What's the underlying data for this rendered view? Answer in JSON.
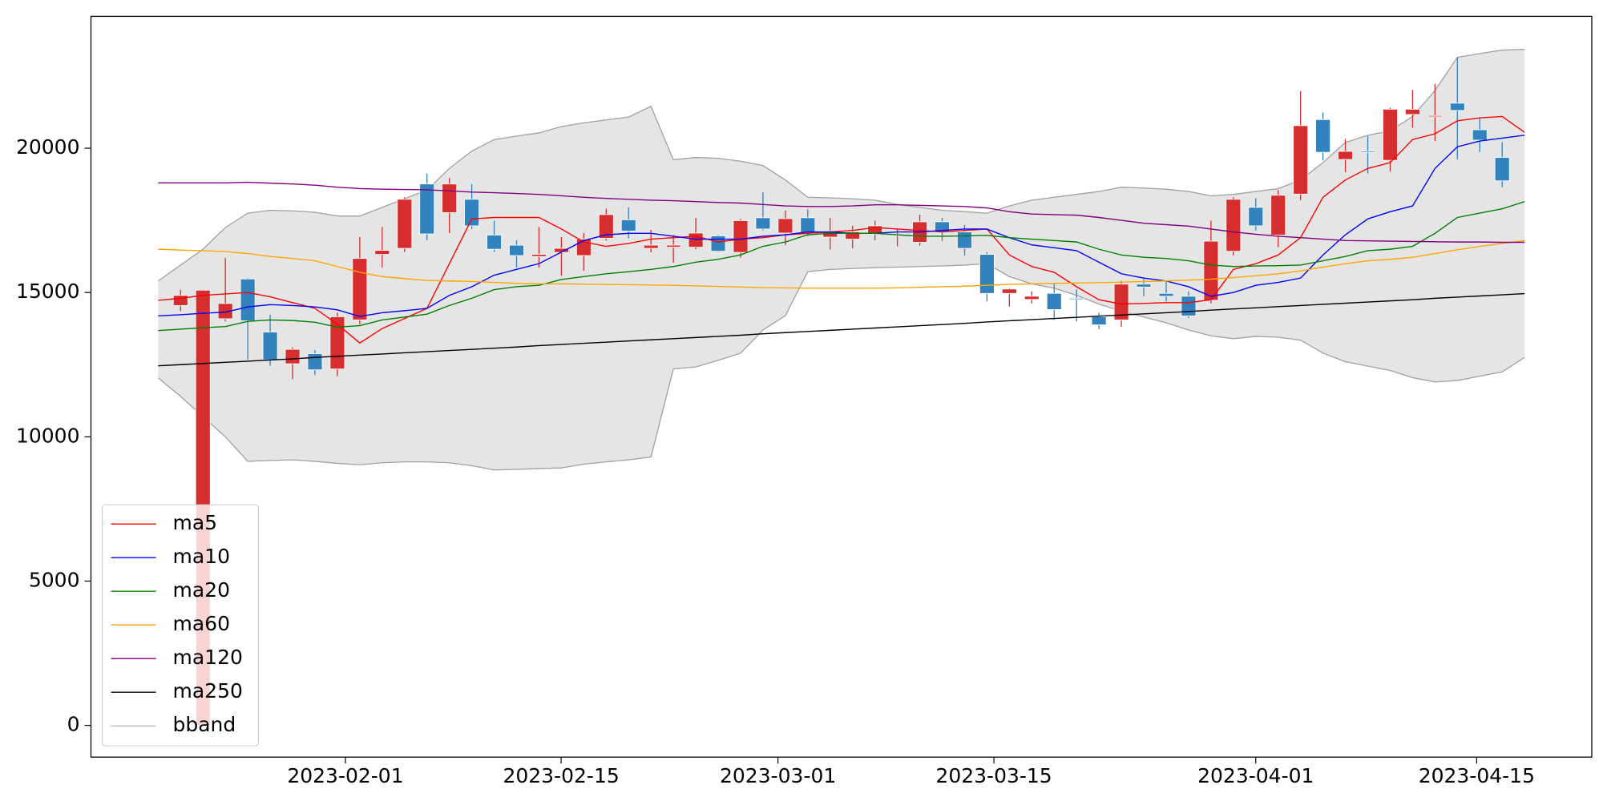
{
  "chart_data": {
    "type": "candlestick",
    "x": [
      0,
      1,
      2,
      3,
      4,
      5,
      6,
      7,
      8,
      9,
      10,
      11,
      12,
      13,
      14,
      15,
      16,
      17,
      18,
      19,
      20,
      21,
      22,
      23,
      24,
      25,
      26,
      27,
      28,
      29,
      30,
      31,
      32,
      33,
      34,
      35,
      36,
      37,
      38,
      39,
      40,
      41,
      42,
      43,
      44,
      45,
      46,
      47,
      48,
      49,
      50,
      51,
      52,
      53,
      54,
      55,
      56,
      57,
      58,
      59,
      60,
      61
    ],
    "xlim": [
      -3,
      64
    ],
    "xticks": [
      {
        "value": 8.36,
        "label": "2023-02-01"
      },
      {
        "value": 17.99,
        "label": "2023-02-15"
      },
      {
        "value": 27.67,
        "label": "2023-03-01"
      },
      {
        "value": 37.31,
        "label": "2023-03-15"
      },
      {
        "value": 49.0,
        "label": "2023-04-01"
      },
      {
        "value": 58.86,
        "label": "2023-04-15"
      }
    ],
    "ylim": [
      -1100,
      24570
    ],
    "yticks": [
      0,
      5000,
      10000,
      15000,
      20000
    ],
    "up_color": "#d62e2e",
    "down_color": "#3182bd",
    "legend": "lower left",
    "candles": {
      "open": [
        null,
        14550,
        0,
        14090,
        15470,
        13630,
        12530,
        12880,
        12350,
        14050,
        16320,
        16530,
        18760,
        17770,
        18230,
        16990,
        16640,
        16250,
        16390,
        16280,
        16880,
        17520,
        16530,
        16570,
        16570,
        16960,
        16390,
        17590,
        17060,
        17590,
        16920,
        16850,
        17030,
        16980,
        16740,
        17450,
        17100,
        16320,
        14970,
        14760,
        14970,
        14800,
        14160,
        14050,
        15290,
        14970,
        14870,
        14730,
        16430,
        17950,
        16990,
        18410,
        20990,
        19610,
        19900,
        19580,
        21170,
        21100,
        21560,
        20640,
        19680,
        null
      ],
      "high": [
        null,
        15100,
        15100,
        16200,
        15500,
        14230,
        13100,
        13000,
        14300,
        16920,
        17270,
        18300,
        19120,
        18970,
        18760,
        17490,
        16810,
        17270,
        16920,
        17060,
        17910,
        17950,
        17170,
        16990,
        17590,
        17000,
        17550,
        18480,
        17840,
        17880,
        17590,
        17310,
        17490,
        17200,
        17700,
        17590,
        17340,
        16400,
        15150,
        15040,
        15330,
        15100,
        14300,
        15400,
        15470,
        15400,
        15040,
        17490,
        18300,
        18270,
        18550,
        21980,
        21240,
        20320,
        20420,
        21400,
        22020,
        22230,
        23150,
        21060,
        20210,
        null
      ],
      "low": [
        null,
        14350,
        0,
        14000,
        12670,
        12460,
        12000,
        12140,
        12100,
        13900,
        15860,
        16400,
        16810,
        17060,
        17200,
        16400,
        15860,
        15860,
        15580,
        15750,
        16800,
        16880,
        16390,
        16040,
        16500,
        16400,
        16210,
        17150,
        16640,
        16950,
        16490,
        16530,
        16810,
        16600,
        16620,
        16780,
        16280,
        14690,
        14510,
        14620,
        14050,
        14000,
        13730,
        13810,
        14870,
        14690,
        14120,
        14620,
        16280,
        17150,
        16570,
        18200,
        19580,
        19170,
        19120,
        19190,
        20710,
        20250,
        19610,
        19860,
        18650,
        null
      ],
      "close": [
        null,
        14900,
        15080,
        14620,
        14020,
        12670,
        13030,
        12320,
        14160,
        16180,
        16460,
        18230,
        17030,
        18760,
        17310,
        16500,
        16280,
        16320,
        16530,
        16850,
        17700,
        17130,
        16640,
        16640,
        17060,
        16430,
        17490,
        17200,
        17560,
        17060,
        17130,
        17100,
        17310,
        17020,
        17450,
        17100,
        16530,
        14970,
        15120,
        14870,
        14410,
        14780,
        13880,
        15290,
        15190,
        14870,
        14190,
        16780,
        18230,
        17310,
        18370,
        20780,
        19860,
        19890,
        19880,
        21350,
        21350,
        21130,
        21310,
        20280,
        18870,
        null
      ]
    },
    "series": [
      {
        "name": "ma5",
        "color": "#ff0000",
        "values": [
          14730,
          14800,
          14900,
          14950,
          15000,
          14850,
          14650,
          14450,
          13900,
          13250,
          13750,
          14100,
          14450,
          16000,
          17550,
          17600,
          17600,
          17600,
          17200,
          16750,
          16600,
          16700,
          16850,
          16900,
          16950,
          16750,
          16850,
          16900,
          17000,
          17050,
          17100,
          17150,
          17250,
          17200,
          17150,
          17100,
          17150,
          17200,
          16300,
          15900,
          15700,
          15200,
          14750,
          14600,
          14620,
          14650,
          14650,
          14750,
          15800,
          16000,
          16300,
          16900,
          18300,
          18900,
          19300,
          19500,
          20300,
          20500,
          20950,
          21050,
          21100,
          20550
        ]
      },
      {
        "name": "ma10",
        "color": "#0000ff",
        "values": [
          14190,
          14230,
          14280,
          14320,
          14500,
          14580,
          14550,
          14500,
          14400,
          14170,
          14300,
          14370,
          14450,
          14900,
          15200,
          15600,
          15800,
          16000,
          16400,
          16800,
          17000,
          17050,
          17050,
          16950,
          16850,
          16850,
          16850,
          16950,
          17000,
          17100,
          17100,
          17050,
          17050,
          17100,
          17100,
          17150,
          17200,
          17200,
          16900,
          16650,
          16550,
          16450,
          16050,
          15650,
          15500,
          15400,
          15200,
          14870,
          15000,
          15250,
          15350,
          15500,
          16300,
          17000,
          17550,
          17800,
          18000,
          19300,
          20050,
          20250,
          20350,
          20450
        ]
      },
      {
        "name": "ma20",
        "color": "#008000",
        "values": [
          13680,
          13730,
          13780,
          13820,
          14000,
          14050,
          14030,
          13970,
          13800,
          13850,
          14050,
          14150,
          14250,
          14550,
          14800,
          15100,
          15200,
          15250,
          15450,
          15550,
          15650,
          15720,
          15800,
          15900,
          16050,
          16150,
          16300,
          16600,
          16750,
          17000,
          17050,
          17050,
          17050,
          17000,
          16950,
          16950,
          16960,
          16980,
          16900,
          16850,
          16800,
          16750,
          16500,
          16300,
          16220,
          16180,
          16100,
          15950,
          15900,
          15920,
          15930,
          15950,
          16100,
          16250,
          16450,
          16500,
          16600,
          17050,
          17600,
          17750,
          17900,
          18150
        ]
      },
      {
        "name": "ma60",
        "color": "#ffa500",
        "values": [
          16500,
          16470,
          16450,
          16420,
          16350,
          16250,
          16180,
          16100,
          15900,
          15700,
          15550,
          15480,
          15420,
          15400,
          15380,
          15350,
          15320,
          15300,
          15300,
          15290,
          15280,
          15270,
          15260,
          15250,
          15230,
          15210,
          15190,
          15170,
          15160,
          15150,
          15150,
          15150,
          15150,
          15160,
          15180,
          15200,
          15220,
          15250,
          15280,
          15300,
          15320,
          15330,
          15340,
          15360,
          15380,
          15400,
          15430,
          15460,
          15520,
          15580,
          15650,
          15750,
          15880,
          16000,
          16100,
          16150,
          16220,
          16350,
          16480,
          16600,
          16700,
          16800
        ]
      },
      {
        "name": "ma120",
        "color": "#800080",
        "values": [
          18800,
          18800,
          18800,
          18800,
          18820,
          18790,
          18760,
          18720,
          18650,
          18600,
          18580,
          18570,
          18560,
          18520,
          18480,
          18460,
          18430,
          18400,
          18350,
          18300,
          18260,
          18230,
          18200,
          18180,
          18150,
          18120,
          18100,
          18050,
          18000,
          17980,
          17980,
          18000,
          18040,
          18040,
          18020,
          18000,
          17980,
          17930,
          17800,
          17720,
          17700,
          17680,
          17600,
          17500,
          17400,
          17350,
          17300,
          17200,
          17100,
          17020,
          16950,
          16900,
          16850,
          16800,
          16790,
          16780,
          16770,
          16760,
          16750,
          16750,
          16740,
          16740
        ]
      },
      {
        "name": "ma250",
        "color": "#000000",
        "values": [
          12460,
          12500,
          12540,
          12580,
          12620,
          12660,
          12700,
          12750,
          12790,
          12830,
          12870,
          12910,
          12950,
          12990,
          13030,
          13070,
          13110,
          13160,
          13200,
          13240,
          13280,
          13320,
          13360,
          13400,
          13440,
          13480,
          13520,
          13570,
          13610,
          13650,
          13690,
          13730,
          13770,
          13810,
          13850,
          13890,
          13930,
          13980,
          14020,
          14060,
          14100,
          14140,
          14180,
          14220,
          14260,
          14300,
          14340,
          14390,
          14430,
          14470,
          14510,
          14550,
          14590,
          14630,
          14670,
          14710,
          14750,
          14800,
          14840,
          14880,
          14920,
          14960
        ]
      },
      {
        "name": "bband",
        "color": "#a0a0a0",
        "fill": "#e5e5e5",
        "upper": [
          15400,
          15950,
          16500,
          17250,
          17750,
          17850,
          17830,
          17780,
          17650,
          17650,
          17950,
          18250,
          18550,
          19300,
          19900,
          20300,
          20420,
          20530,
          20750,
          20880,
          20980,
          21080,
          21450,
          19600,
          19680,
          19650,
          19550,
          19400,
          18900,
          18300,
          18280,
          18250,
          18200,
          18050,
          17950,
          17850,
          17800,
          17750,
          18000,
          18200,
          18300,
          18400,
          18500,
          18650,
          18620,
          18580,
          18500,
          18350,
          18400,
          18500,
          18600,
          18900,
          19500,
          20200,
          20450,
          20600,
          21100,
          22000,
          23150,
          23280,
          23400,
          23430
        ],
        "lower": [
          12040,
          11400,
          10700,
          10000,
          9150,
          9180,
          9200,
          9150,
          9080,
          9030,
          9100,
          9130,
          9130,
          9100,
          9000,
          8850,
          8870,
          8900,
          8920,
          9050,
          9130,
          9200,
          9300,
          12350,
          12420,
          12650,
          12900,
          13700,
          14200,
          15720,
          15800,
          15830,
          15860,
          15880,
          15900,
          15920,
          15950,
          16000,
          15550,
          15300,
          15150,
          14900,
          14600,
          14350,
          14150,
          13950,
          13700,
          13500,
          13400,
          13480,
          13450,
          13350,
          12900,
          12600,
          12450,
          12300,
          12050,
          11900,
          11950,
          12100,
          12250,
          12750
        ]
      }
    ]
  }
}
